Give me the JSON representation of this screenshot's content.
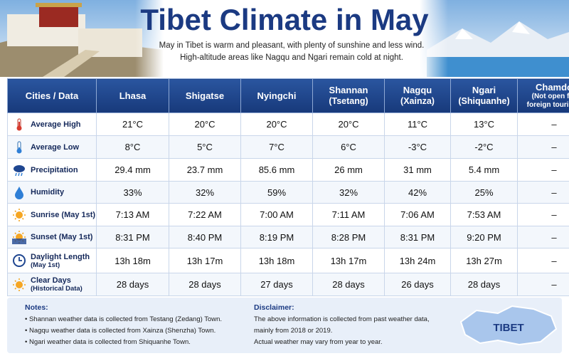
{
  "header": {
    "title": "Tibet Climate in May",
    "subtitle": [
      "May in Tibet is warm and pleasant, with plenty of sunshine and less wind.",
      "High-altitude areas like Nagqu and Ngari remain cold at night."
    ]
  },
  "table": {
    "columns": [
      {
        "name": "Cities / Data"
      },
      {
        "name": "Lhasa"
      },
      {
        "name": "Shigatse"
      },
      {
        "name": "Nyingchi"
      },
      {
        "name": "Shannan",
        "sub": "(Tsetang)"
      },
      {
        "name": "Nagqu",
        "sub": "(Xainza)"
      },
      {
        "name": "Ngari",
        "sub": "(Shiquanhe)"
      },
      {
        "name": "Chamdo",
        "sub": "(Not open for foreign tourists)"
      }
    ],
    "rows": [
      {
        "label": "Average High",
        "values": [
          "21°C",
          "20°C",
          "20°C",
          "20°C",
          "11°C",
          "13°C",
          "–"
        ]
      },
      {
        "label": "Average Low",
        "values": [
          "8°C",
          "5°C",
          "7°C",
          "6°C",
          "-3°C",
          "-2°C",
          "–"
        ]
      },
      {
        "label": "Precipitation",
        "values": [
          "29.4 mm",
          "23.7 mm",
          "85.6 mm",
          "26 mm",
          "31 mm",
          "5.4 mm",
          "–"
        ]
      },
      {
        "label": "Humidity",
        "values": [
          "33%",
          "32%",
          "59%",
          "32%",
          "42%",
          "25%",
          "–"
        ]
      },
      {
        "label": "Sunrise (May 1st)",
        "values": [
          "7:13 AM",
          "7:22 AM",
          "7:00 AM",
          "7:11 AM",
          "7:06 AM",
          "7:53 AM",
          "–"
        ]
      },
      {
        "label": "Sunset (May 1st)",
        "values": [
          "8:31 PM",
          "8:40 PM",
          "8:19 PM",
          "8:28 PM",
          "8:31 PM",
          "9:20 PM",
          "–"
        ]
      },
      {
        "label": "Daylight Length",
        "sub": "(May 1st)",
        "values": [
          "13h 18m",
          "13h 17m",
          "13h 18m",
          "13h 17m",
          "13h 24m",
          "13h 27m",
          "–"
        ]
      },
      {
        "label": "Clear Days",
        "sub": "(Historical Data)",
        "values": [
          "28 days",
          "28 days",
          "27 days",
          "28 days",
          "26 days",
          "28 days",
          "–"
        ]
      }
    ]
  },
  "notes": {
    "title": "Notes:",
    "items": [
      "Shannan weather data is collected from Testang (Zedang) Town.",
      "Nagqu weather data is collected from Xainza (Shenzha) Town.",
      "Ngari weather data is collected from Shiquanhe Town."
    ]
  },
  "disclaimer": {
    "title": "Disclaimer:",
    "lines": [
      "The above information is collected from past weather data,",
      "mainly from 2018 or 2019.",
      "Actual weather may vary from year to year."
    ]
  },
  "map_label": "TIBET"
}
